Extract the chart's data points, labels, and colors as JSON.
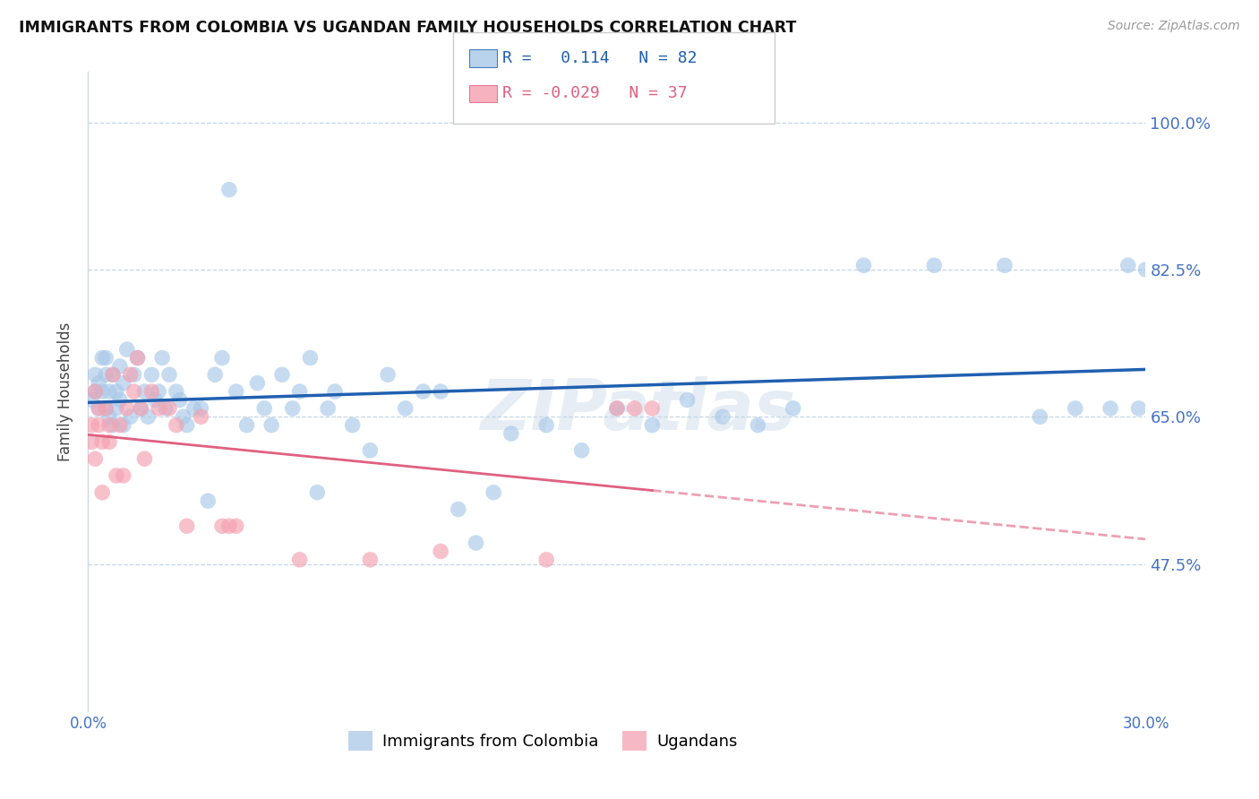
{
  "title": "IMMIGRANTS FROM COLOMBIA VS UGANDAN FAMILY HOUSEHOLDS CORRELATION CHART",
  "source": "Source: ZipAtlas.com",
  "ylabel": "Family Households",
  "y_ticks": [
    0.475,
    0.65,
    0.825,
    1.0
  ],
  "y_tick_labels": [
    "47.5%",
    "65.0%",
    "82.5%",
    "100.0%"
  ],
  "x_range": [
    0.0,
    0.3
  ],
  "y_range": [
    0.3,
    1.06
  ],
  "colombia_R": 0.114,
  "colombia_N": 82,
  "uganda_R": -0.029,
  "uganda_N": 37,
  "colombia_color": "#a8c8e8",
  "uganda_color": "#f4a0b0",
  "colombia_line_color": "#2060b0",
  "uganda_line_color": "#e06080",
  "legend_label_colombia": "Immigrants from Colombia",
  "legend_label_uganda": "Ugandans",
  "colombia_x": [
    0.001,
    0.002,
    0.002,
    0.003,
    0.003,
    0.004,
    0.004,
    0.005,
    0.005,
    0.005,
    0.006,
    0.006,
    0.007,
    0.007,
    0.008,
    0.008,
    0.009,
    0.009,
    0.01,
    0.01,
    0.011,
    0.012,
    0.013,
    0.014,
    0.015,
    0.016,
    0.017,
    0.018,
    0.019,
    0.02,
    0.021,
    0.022,
    0.023,
    0.025,
    0.026,
    0.027,
    0.028,
    0.03,
    0.032,
    0.034,
    0.036,
    0.038,
    0.04,
    0.042,
    0.045,
    0.048,
    0.05,
    0.052,
    0.055,
    0.058,
    0.06,
    0.063,
    0.065,
    0.068,
    0.07,
    0.075,
    0.08,
    0.085,
    0.09,
    0.095,
    0.1,
    0.105,
    0.11,
    0.115,
    0.12,
    0.13,
    0.14,
    0.15,
    0.16,
    0.17,
    0.18,
    0.19,
    0.2,
    0.22,
    0.24,
    0.26,
    0.27,
    0.28,
    0.29,
    0.295,
    0.298,
    0.3
  ],
  "colombia_y": [
    0.67,
    0.68,
    0.7,
    0.66,
    0.69,
    0.68,
    0.72,
    0.66,
    0.7,
    0.72,
    0.65,
    0.68,
    0.64,
    0.7,
    0.66,
    0.68,
    0.67,
    0.71,
    0.64,
    0.69,
    0.73,
    0.65,
    0.7,
    0.72,
    0.66,
    0.68,
    0.65,
    0.7,
    0.67,
    0.68,
    0.72,
    0.66,
    0.7,
    0.68,
    0.67,
    0.65,
    0.64,
    0.66,
    0.66,
    0.55,
    0.7,
    0.72,
    0.92,
    0.68,
    0.64,
    0.69,
    0.66,
    0.64,
    0.7,
    0.66,
    0.68,
    0.72,
    0.56,
    0.66,
    0.68,
    0.64,
    0.61,
    0.7,
    0.66,
    0.68,
    0.68,
    0.54,
    0.5,
    0.56,
    0.63,
    0.64,
    0.61,
    0.66,
    0.64,
    0.67,
    0.65,
    0.64,
    0.66,
    0.83,
    0.83,
    0.83,
    0.65,
    0.66,
    0.66,
    0.83,
    0.66,
    0.825
  ],
  "uganda_x": [
    0.001,
    0.001,
    0.002,
    0.002,
    0.003,
    0.003,
    0.004,
    0.004,
    0.005,
    0.006,
    0.006,
    0.007,
    0.008,
    0.009,
    0.01,
    0.011,
    0.012,
    0.013,
    0.014,
    0.015,
    0.016,
    0.018,
    0.02,
    0.023,
    0.025,
    0.028,
    0.032,
    0.038,
    0.04,
    0.042,
    0.06,
    0.08,
    0.1,
    0.13,
    0.15,
    0.155,
    0.16
  ],
  "uganda_y": [
    0.64,
    0.62,
    0.68,
    0.6,
    0.66,
    0.64,
    0.56,
    0.62,
    0.66,
    0.62,
    0.64,
    0.7,
    0.58,
    0.64,
    0.58,
    0.66,
    0.7,
    0.68,
    0.72,
    0.66,
    0.6,
    0.68,
    0.66,
    0.66,
    0.64,
    0.52,
    0.65,
    0.52,
    0.52,
    0.52,
    0.48,
    0.48,
    0.49,
    0.48,
    0.66,
    0.66,
    0.66
  ]
}
